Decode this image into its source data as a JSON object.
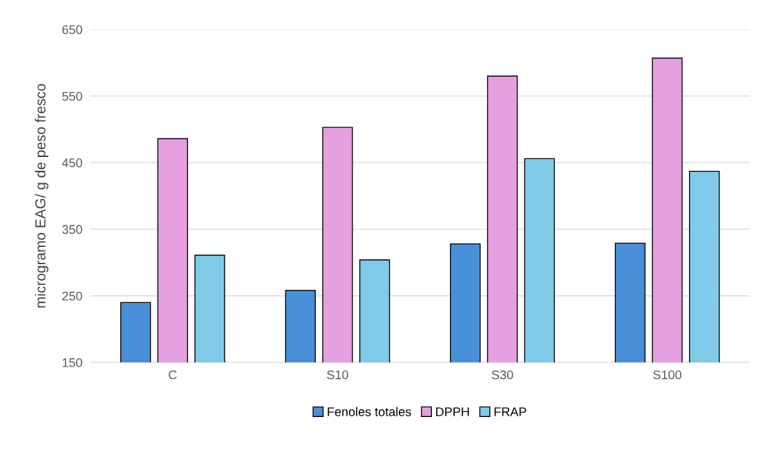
{
  "chart_data": {
    "type": "bar",
    "ylabel": "microgramo EAG/ g de peso fresco",
    "categories": [
      "C",
      "S10",
      "S30",
      "S100"
    ],
    "series": [
      {
        "name": "Fenoles totales",
        "color": "#4a90d9",
        "values": [
          240,
          258,
          328,
          329
        ]
      },
      {
        "name": "DPPH",
        "color": "#e4a0e0",
        "values": [
          486,
          503,
          580,
          607
        ]
      },
      {
        "name": "FRAP",
        "color": "#80cbea",
        "values": [
          311,
          304,
          456,
          437
        ]
      }
    ],
    "ylim": [
      150,
      650
    ],
    "yticks": [
      150,
      250,
      350,
      450,
      550,
      650
    ],
    "grid": "y",
    "legend": "bottom"
  }
}
